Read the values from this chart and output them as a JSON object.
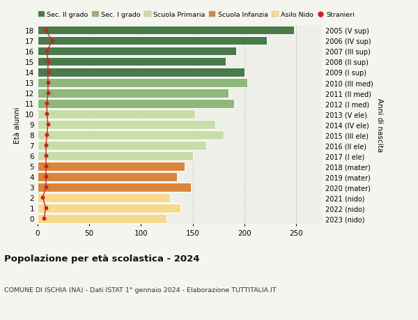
{
  "ages": [
    0,
    1,
    2,
    3,
    4,
    5,
    6,
    7,
    8,
    9,
    10,
    11,
    12,
    13,
    14,
    15,
    16,
    17,
    18
  ],
  "right_labels": [
    "2023 (nido)",
    "2022 (nido)",
    "2021 (nido)",
    "2020 (mater)",
    "2019 (mater)",
    "2018 (mater)",
    "2017 (I ele)",
    "2016 (II ele)",
    "2015 (III ele)",
    "2014 (IV ele)",
    "2013 (V ele)",
    "2012 (I med)",
    "2011 (II med)",
    "2010 (III med)",
    "2009 (I sup)",
    "2008 (II sup)",
    "2007 (III sup)",
    "2006 (IV sup)",
    "2005 (V sup)"
  ],
  "bar_values": [
    125,
    138,
    128,
    148,
    135,
    142,
    150,
    163,
    180,
    172,
    152,
    190,
    185,
    203,
    200,
    182,
    192,
    222,
    248
  ],
  "bar_colors": [
    "#f5d98e",
    "#f5d98e",
    "#f5d98e",
    "#d9843a",
    "#d9843a",
    "#d9843a",
    "#c8dea8",
    "#c8dea8",
    "#c8dea8",
    "#c8dea8",
    "#c8dea8",
    "#8db87a",
    "#8db87a",
    "#8db87a",
    "#4a7a4a",
    "#4a7a4a",
    "#4a7a4a",
    "#4a7a4a",
    "#4a7a4a"
  ],
  "stranieri_values": [
    6,
    8,
    5,
    8,
    8,
    8,
    8,
    8,
    9,
    10,
    9,
    9,
    10,
    10,
    10,
    10,
    9,
    14,
    8
  ],
  "legend_labels": [
    "Sec. II grado",
    "Sec. I grado",
    "Scuola Primaria",
    "Scuola Infanzia",
    "Asilo Nido",
    "Stranieri"
  ],
  "legend_colors": [
    "#4a7a4a",
    "#8db87a",
    "#c8dea8",
    "#d9843a",
    "#f5d98e",
    "#cc2222"
  ],
  "title": "Popolazione per età scolastica - 2024",
  "subtitle": "COMUNE DI ISCHIA (NA) - Dati ISTAT 1° gennaio 2024 - Elaborazione TUTTITALIA.IT",
  "ylabel_left": "Età alunni",
  "ylabel_right": "Anni di nascita",
  "xlim": [
    0,
    275
  ],
  "xticks": [
    0,
    50,
    100,
    150,
    200,
    250
  ],
  "background_color": "#f5f5f0",
  "bar_background": "#efefea"
}
